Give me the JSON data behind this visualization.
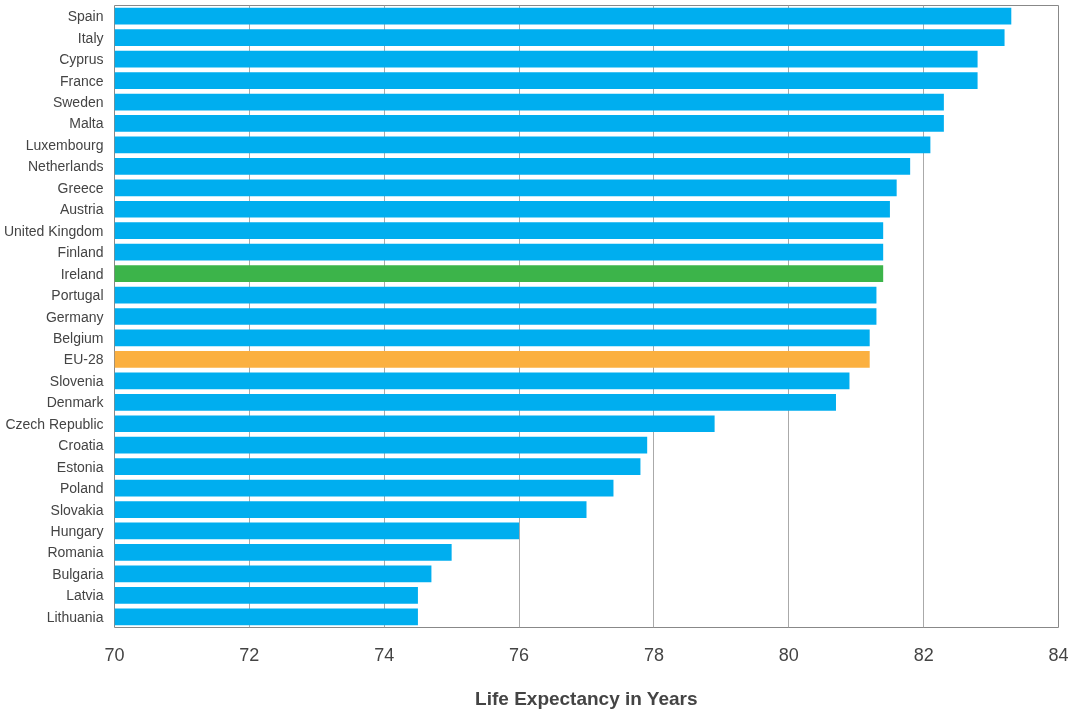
{
  "chart_data": {
    "type": "bar",
    "orientation": "horizontal",
    "xlabel": "Life Expectancy in Years",
    "categories": [
      "Spain",
      "Italy",
      "Cyprus",
      "France",
      "Sweden",
      "Malta",
      "Luxembourg",
      "Netherlands",
      "Greece",
      "Austria",
      "United Kingdom",
      "Finland",
      "Ireland",
      "Portugal",
      "Germany",
      "Belgium",
      "EU-28",
      "Slovenia",
      "Denmark",
      "Czech Republic",
      "Croatia",
      "Estonia",
      "Poland",
      "Slovakia",
      "Hungary",
      "Romania",
      "Bulgaria",
      "Latvia",
      "Lithuania"
    ],
    "values": [
      83.3,
      83.2,
      82.8,
      82.8,
      82.3,
      82.3,
      82.1,
      81.8,
      81.6,
      81.5,
      81.4,
      81.4,
      81.4,
      81.3,
      81.3,
      81.2,
      81.2,
      80.9,
      80.7,
      78.9,
      77.9,
      77.8,
      77.4,
      77.0,
      76.0,
      75.0,
      74.7,
      74.5,
      74.5
    ],
    "colors": [
      "#00aeef",
      "#00aeef",
      "#00aeef",
      "#00aeef",
      "#00aeef",
      "#00aeef",
      "#00aeef",
      "#00aeef",
      "#00aeef",
      "#00aeef",
      "#00aeef",
      "#00aeef",
      "#3cb44a",
      "#00aeef",
      "#00aeef",
      "#00aeef",
      "#fbb040",
      "#00aeef",
      "#00aeef",
      "#00aeef",
      "#00aeef",
      "#00aeef",
      "#00aeef",
      "#00aeef",
      "#00aeef",
      "#00aeef",
      "#00aeef",
      "#00aeef",
      "#00aeef"
    ],
    "xlim": [
      70,
      84
    ],
    "xticks": [
      70,
      72,
      74,
      76,
      78,
      80,
      82,
      84
    ],
    "grid": "x"
  }
}
